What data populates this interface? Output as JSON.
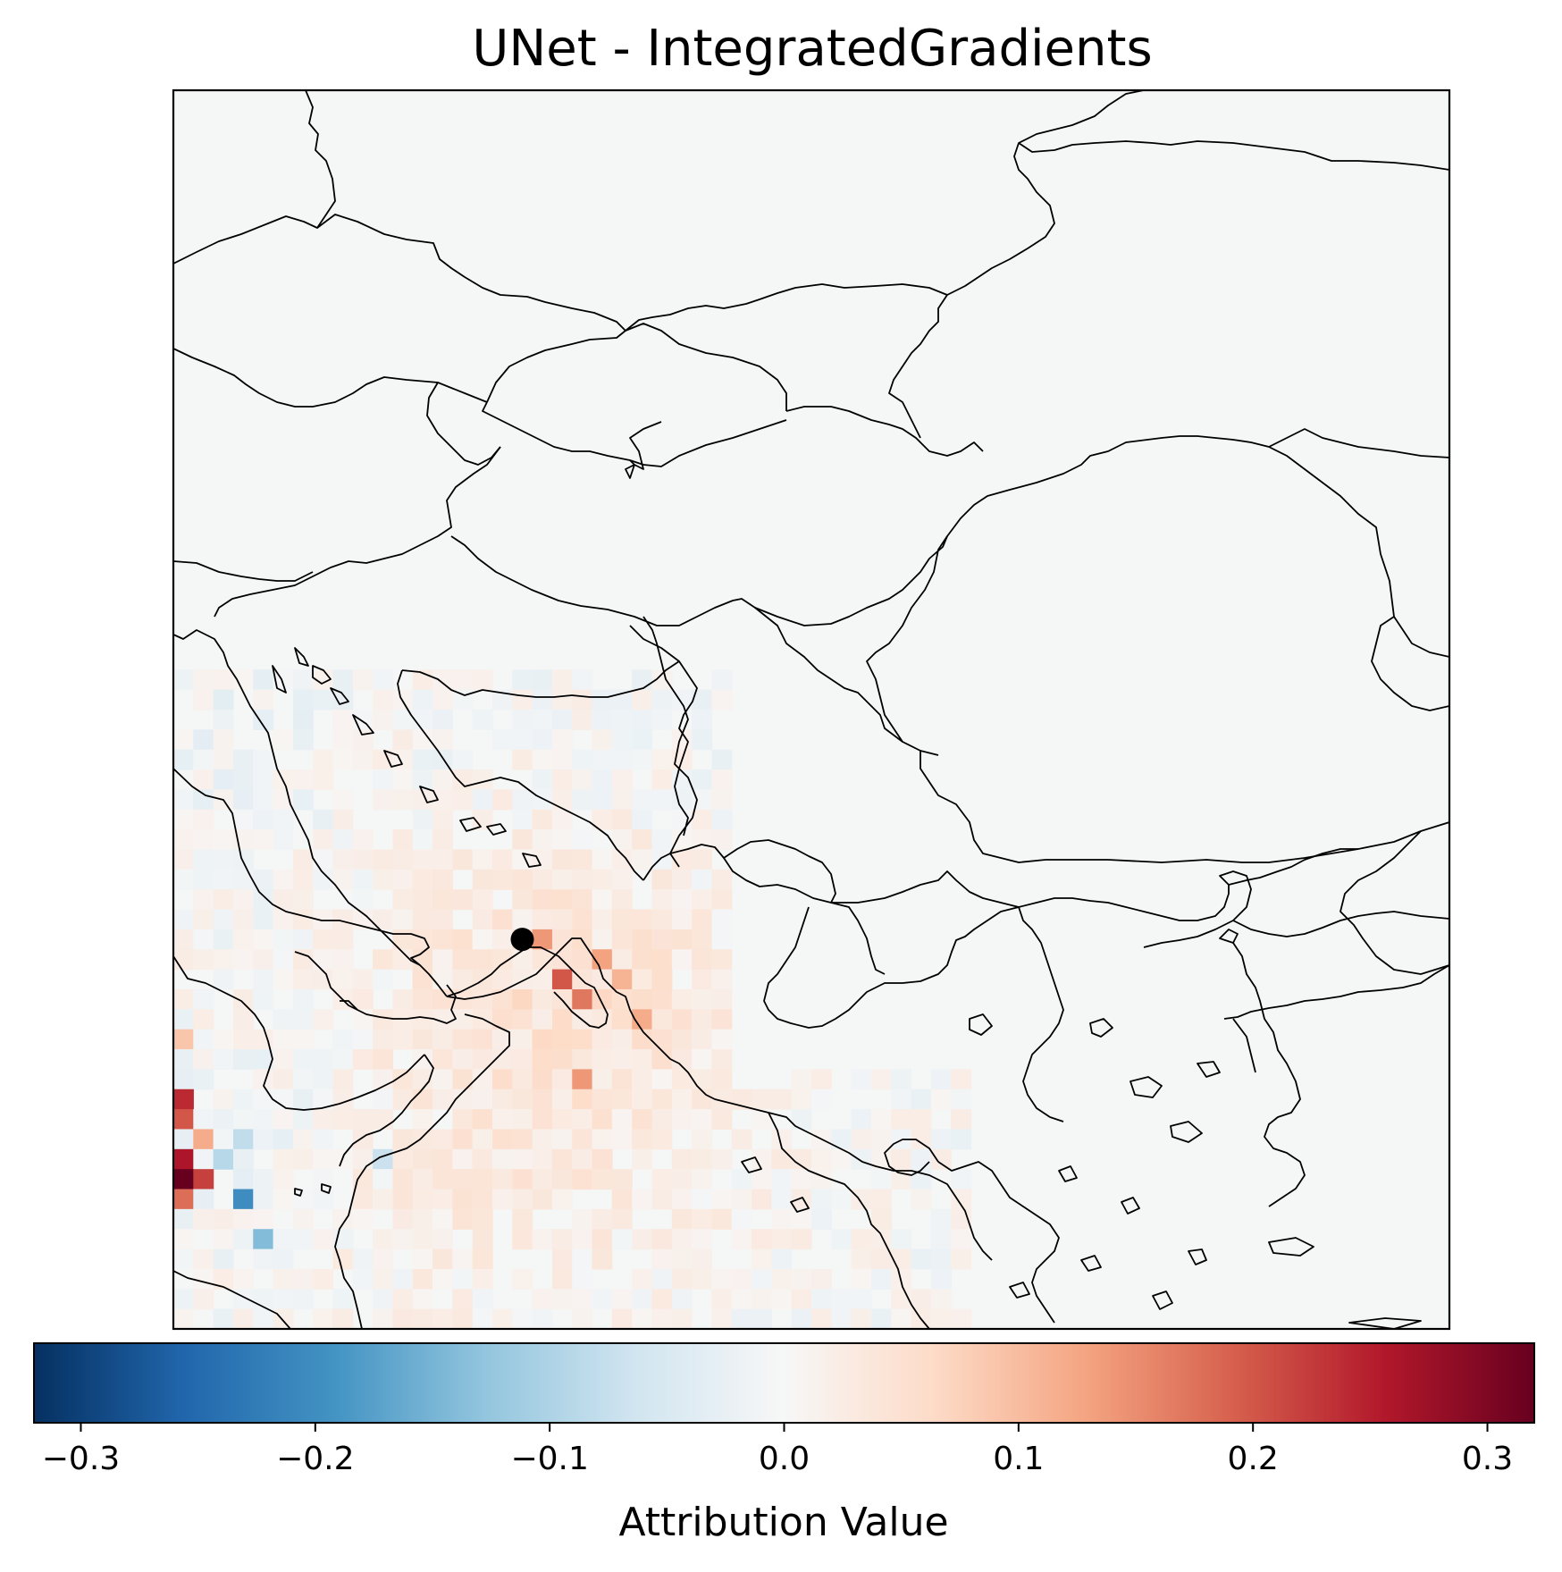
{
  "title": "UNet - IntegratedGradients",
  "colorbar": {
    "label": "Attribution Value",
    "min": -0.32,
    "max": 0.32,
    "ticks": [
      {
        "value": -0.3,
        "label": "−0.3"
      },
      {
        "value": -0.2,
        "label": "−0.2"
      },
      {
        "value": -0.1,
        "label": "−0.1"
      },
      {
        "value": 0.0,
        "label": "0.0"
      },
      {
        "value": 0.1,
        "label": "0.1"
      },
      {
        "value": 0.2,
        "label": "0.2"
      },
      {
        "value": 0.3,
        "label": "0.3"
      }
    ],
    "colormap": [
      "#053061",
      "#2166ac",
      "#4393c3",
      "#92c5de",
      "#d1e5f0",
      "#f7f7f7",
      "#fddbc7",
      "#f4a582",
      "#d6604d",
      "#b2182b",
      "#67001f"
    ]
  },
  "chart_data": {
    "type": "heatmap",
    "title": "UNet - IntegratedGradients",
    "colorbar_label": "Attribution Value",
    "value_range": [
      -0.32,
      0.32
    ],
    "grid_size": [
      64,
      62
    ],
    "target_marker": {
      "col": 17,
      "row": 42
    },
    "hotspots": [
      {
        "col": 18,
        "row": 42,
        "value": 0.14
      },
      {
        "col": 19,
        "row": 44,
        "value": 0.2
      },
      {
        "col": 21,
        "row": 43,
        "value": 0.13
      },
      {
        "col": 22,
        "row": 44,
        "value": 0.11
      },
      {
        "col": 20,
        "row": 45,
        "value": 0.17
      },
      {
        "col": 23,
        "row": 46,
        "value": 0.12
      },
      {
        "col": 20,
        "row": 49,
        "value": 0.14
      },
      {
        "col": 0,
        "row": 53,
        "value": 0.26
      },
      {
        "col": 0,
        "row": 51,
        "value": 0.2
      },
      {
        "col": 0,
        "row": 50,
        "value": 0.24
      },
      {
        "col": 0,
        "row": 54,
        "value": 0.32
      },
      {
        "col": 1,
        "row": 54,
        "value": 0.22
      },
      {
        "col": 1,
        "row": 52,
        "value": 0.12
      },
      {
        "col": 0,
        "row": 55,
        "value": 0.18
      },
      {
        "col": 3,
        "row": 55,
        "value": -0.2
      },
      {
        "col": 4,
        "row": 57,
        "value": -0.14
      },
      {
        "col": 2,
        "row": 53,
        "value": -0.09
      },
      {
        "col": 3,
        "row": 52,
        "value": -0.08
      },
      {
        "col": 10,
        "row": 53,
        "value": -0.07
      },
      {
        "col": 0,
        "row": 47,
        "value": 0.09
      }
    ]
  }
}
